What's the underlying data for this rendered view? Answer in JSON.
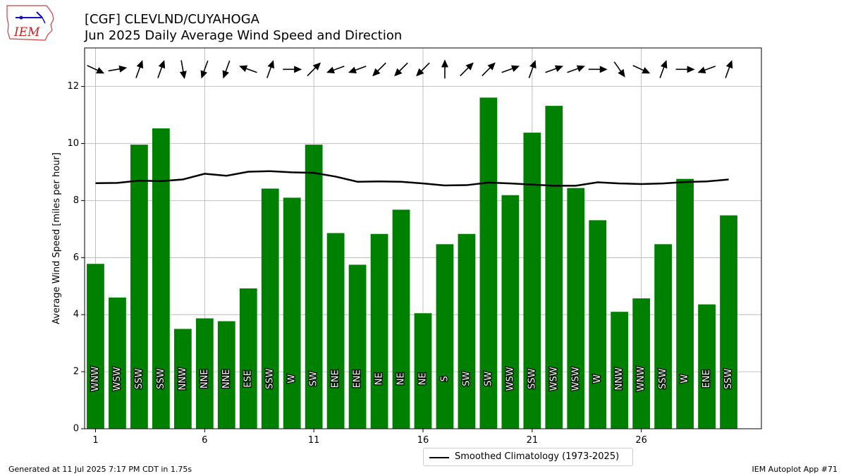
{
  "header": {
    "logo_text": "IEM",
    "title_line1": "[CGF] CLEVLND/CUYAHOGA",
    "title_line2": "Jun 2025 Daily Average Wind Speed and Direction"
  },
  "footer": {
    "left": "Generated at 11 Jul 2025 7:17 PM CDT in 1.75s",
    "right": "IEM Autoplot App #71"
  },
  "colors": {
    "bar": "#008000",
    "climatology_line": "#000000",
    "grid": "#b0b0b0",
    "arrow": "#000000"
  },
  "chart_data": {
    "type": "bar",
    "title": "",
    "xlabel": "",
    "ylabel": "Average Wind Speed [miles per hour]",
    "ylim": [
      0,
      13.35
    ],
    "xlim": [
      0.5,
      31.5
    ],
    "xticks": [
      1,
      6,
      11,
      16,
      21,
      26
    ],
    "yticks": [
      0,
      2,
      4,
      6,
      8,
      10,
      12
    ],
    "grid": true,
    "legend_placement": "bottom-center below plot",
    "days": [
      1,
      2,
      3,
      4,
      5,
      6,
      7,
      8,
      9,
      10,
      11,
      12,
      13,
      14,
      15,
      16,
      17,
      18,
      19,
      20,
      21,
      22,
      23,
      24,
      25,
      26,
      27,
      28,
      29,
      30
    ],
    "speed_mph": [
      5.78,
      4.6,
      9.96,
      10.53,
      3.5,
      3.87,
      3.77,
      4.92,
      8.42,
      8.1,
      9.96,
      6.86,
      5.75,
      6.83,
      7.68,
      4.05,
      6.47,
      6.83,
      11.61,
      8.19,
      10.38,
      11.32,
      8.44,
      7.31,
      4.1,
      4.57,
      6.47,
      8.76,
      4.36,
      7.48
    ],
    "direction_label": [
      "WNW",
      "WSW",
      "SSW",
      "SSW",
      "NNW",
      "NNE",
      "NNE",
      "ESE",
      "SSW",
      "W",
      "SW",
      "ENE",
      "ENE",
      "NE",
      "NE",
      "NE",
      "S",
      "SW",
      "SW",
      "WSW",
      "SSW",
      "WSW",
      "WSW",
      "W",
      "NNW",
      "WNW",
      "SSW",
      "W",
      "ENE",
      "SSW"
    ],
    "arrow_heading_deg": [
      115,
      80,
      20,
      20,
      170,
      200,
      200,
      290,
      20,
      90,
      45,
      250,
      250,
      225,
      225,
      225,
      0,
      45,
      45,
      70,
      20,
      70,
      70,
      90,
      145,
      115,
      20,
      90,
      250,
      20
    ],
    "series": [
      {
        "name": "Smoothed Climatology (1973-2025)",
        "type": "line",
        "values": [
          8.61,
          8.62,
          8.7,
          8.68,
          8.74,
          8.94,
          8.87,
          9.01,
          9.03,
          8.99,
          8.97,
          8.84,
          8.66,
          8.67,
          8.66,
          8.6,
          8.53,
          8.54,
          8.63,
          8.6,
          8.56,
          8.52,
          8.52,
          8.64,
          8.6,
          8.58,
          8.6,
          8.65,
          8.67,
          8.74
        ]
      }
    ]
  }
}
